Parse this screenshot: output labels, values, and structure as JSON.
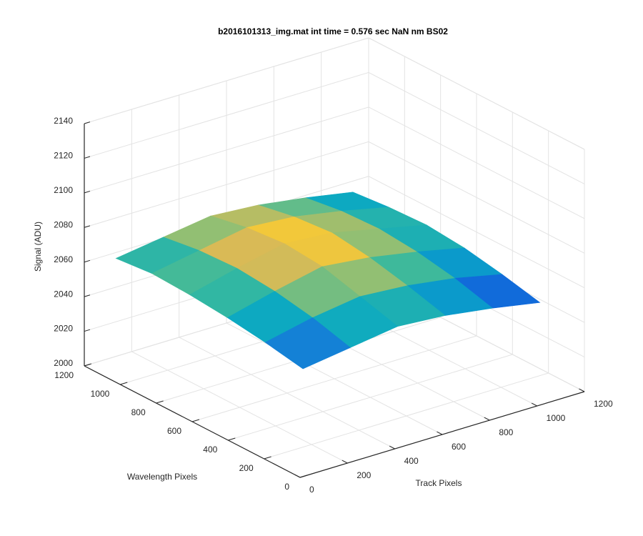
{
  "chart_data": {
    "type": "surface",
    "title": "b2016101313_img.mat int time = 0.576 sec  NaN nm BS02",
    "xlabel": "Track Pixels",
    "ylabel": "Wavelength Pixels",
    "zlabel": "Signal (ADU)",
    "x": [
      50,
      250,
      450,
      650,
      850,
      1050
    ],
    "y": [
      50,
      260,
      470,
      680,
      890,
      1090
    ],
    "z": [
      [
        2058,
        2062,
        2066,
        2064,
        2060,
        2055
      ],
      [
        2062,
        2068,
        2072,
        2070,
        2066,
        2060
      ],
      [
        2065,
        2072,
        2078,
        2075,
        2070,
        2064
      ],
      [
        2067,
        2074,
        2080,
        2078,
        2072,
        2066
      ],
      [
        2068,
        2073,
        2078,
        2076,
        2071,
        2065
      ],
      [
        2066,
        2070,
        2074,
        2072,
        2068,
        2063
      ]
    ],
    "colormap": "parula",
    "xlim": [
      0,
      1200
    ],
    "xticks": [
      0,
      200,
      400,
      600,
      800,
      1000,
      1200
    ],
    "ylim": [
      0,
      1200
    ],
    "yticks": [
      0,
      200,
      400,
      600,
      800,
      1000,
      1200
    ],
    "zlim": [
      2000,
      2140
    ],
    "zticks": [
      2000,
      2020,
      2040,
      2060,
      2080,
      2100,
      2120,
      2140
    ],
    "grid": true
  }
}
